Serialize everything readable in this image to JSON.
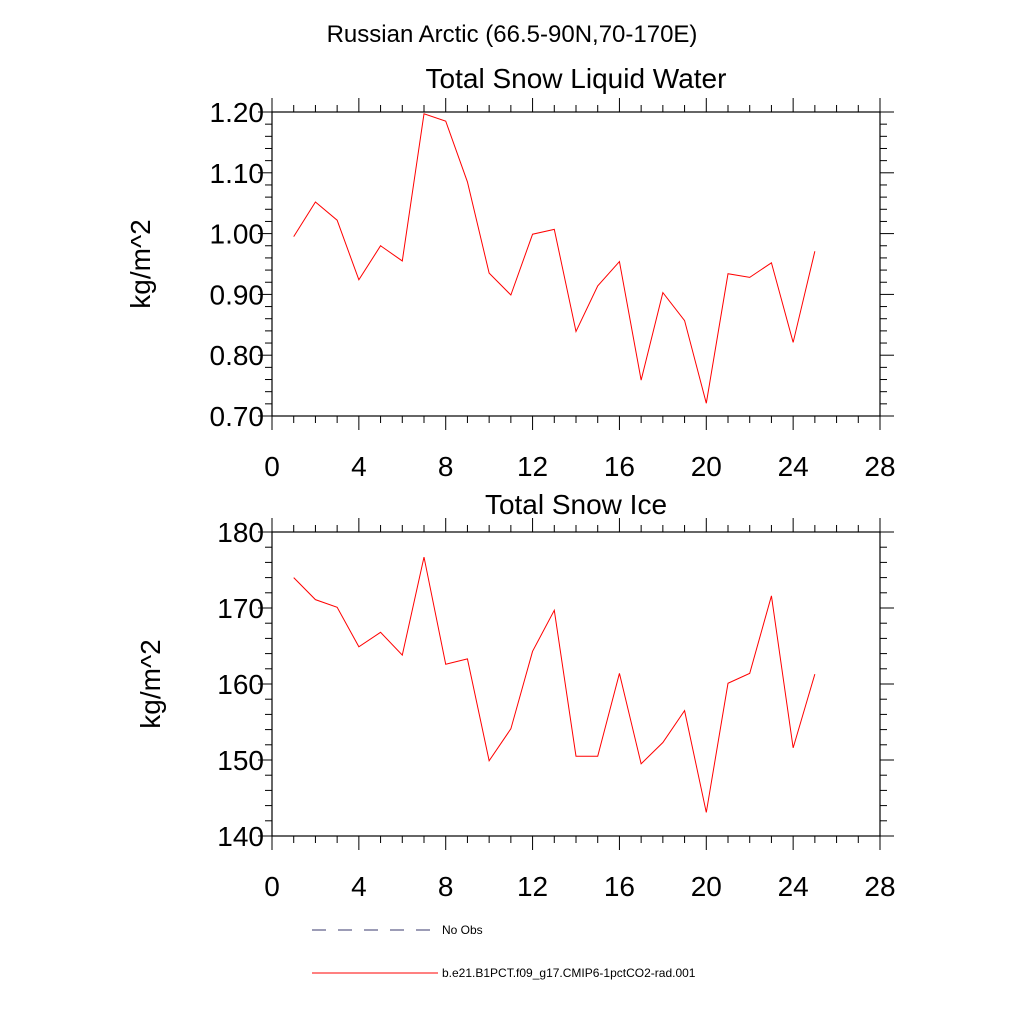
{
  "figure_title": "Russian Arctic (66.5-90N,70-170E)",
  "chart_data": [
    {
      "type": "line",
      "title": "Total Snow Liquid Water",
      "xlabel": "",
      "ylabel": "kg/m^2",
      "xlim": [
        0,
        28
      ],
      "ylim": [
        0.7,
        1.2
      ],
      "x_ticks": [
        "0",
        "4",
        "8",
        "12",
        "16",
        "20",
        "24",
        "28"
      ],
      "y_ticks": [
        "0.70",
        "0.80",
        "0.90",
        "1.00",
        "1.10",
        "1.20"
      ],
      "x": [
        1,
        2,
        3,
        4,
        5,
        6,
        7,
        8,
        9,
        10,
        11,
        12,
        13,
        14,
        15,
        16,
        17,
        18,
        19,
        20,
        21,
        22,
        23,
        24,
        25
      ],
      "series": [
        {
          "name": "b.e21.B1PCT.f09_g17.CMIP6-1pctCO2-rad.001",
          "color": "#ff0000",
          "values": [
            0.995,
            1.052,
            1.022,
            0.924,
            0.98,
            0.955,
            1.197,
            1.185,
            1.085,
            0.935,
            0.899,
            0.999,
            1.007,
            0.839,
            0.914,
            0.954,
            0.759,
            0.903,
            0.857,
            0.721,
            0.934,
            0.928,
            0.952,
            0.821,
            0.971
          ]
        }
      ],
      "grid": false
    },
    {
      "type": "line",
      "title": "Total Snow Ice",
      "xlabel": "",
      "ylabel": "kg/m^2",
      "xlim": [
        0,
        28
      ],
      "ylim": [
        140,
        180
      ],
      "x_ticks": [
        "0",
        "4",
        "8",
        "12",
        "16",
        "20",
        "24",
        "28"
      ],
      "y_ticks": [
        "140",
        "150",
        "160",
        "170",
        "180"
      ],
      "x": [
        1,
        2,
        3,
        4,
        5,
        6,
        7,
        8,
        9,
        10,
        11,
        12,
        13,
        14,
        15,
        16,
        17,
        18,
        19,
        20,
        21,
        22,
        23,
        24,
        25
      ],
      "series": [
        {
          "name": "b.e21.B1PCT.f09_g17.CMIP6-1pctCO2-rad.001",
          "color": "#ff0000",
          "values": [
            174.0,
            171.1,
            170.1,
            164.9,
            166.8,
            163.8,
            176.7,
            162.6,
            163.3,
            149.9,
            154.1,
            164.3,
            169.7,
            150.5,
            150.5,
            161.4,
            149.5,
            152.3,
            156.5,
            143.1,
            160.1,
            161.4,
            171.6,
            151.6,
            161.3
          ]
        }
      ],
      "grid": false
    }
  ],
  "legend": {
    "placement": "bottom",
    "entries": [
      {
        "label": "No Obs",
        "style": "dashed",
        "color": "#3a3a6e"
      },
      {
        "label": "b.e21.B1PCT.f09_g17.CMIP6-1pctCO2-rad.001",
        "style": "solid",
        "color": "#ff0000"
      }
    ]
  }
}
